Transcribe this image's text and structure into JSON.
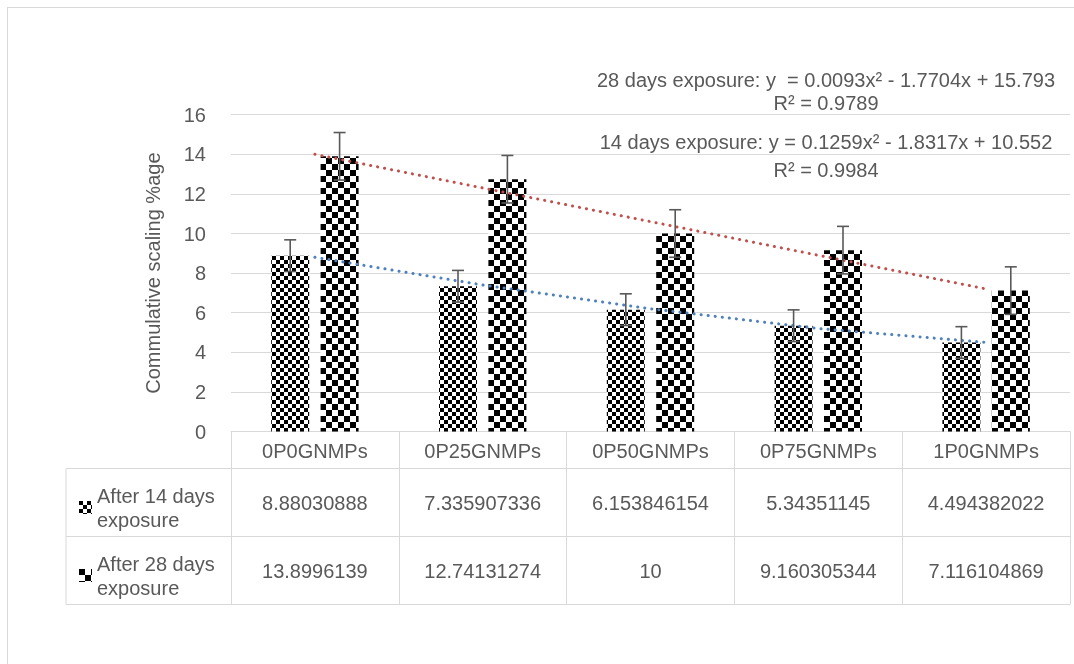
{
  "chart_data": {
    "type": "bar",
    "ylabel": "Commulative scaling %age",
    "annotations": [
      "28 days exposure: y  = 0.0093x² - 1.7704x + 15.793",
      "R² = 0.9789",
      "14 days exposure: y = 0.1259x² - 1.8317x + 10.552",
      "R² = 0.9984"
    ],
    "categories": [
      "0P0GNMPs",
      "0P25GNMPs",
      "0P50GNMPs",
      "0P75GNMPs",
      "1P0GNMPs"
    ],
    "series": [
      {
        "name": "After 14 days exposure",
        "color": "#000000",
        "values": [
          8.88030888,
          7.335907336,
          6.153846154,
          5.34351145,
          4.494382022
        ],
        "errors": [
          0.8,
          0.8,
          0.8,
          0.8,
          0.8
        ],
        "value_labels": [
          "8.88030888",
          "7.335907336",
          "6.153846154",
          "5.34351145",
          "4.494382022"
        ]
      },
      {
        "name": "After 28 days exposure",
        "color": "#000000",
        "values": [
          13.8996139,
          12.74131274,
          10,
          9.160305344,
          7.116104869
        ],
        "errors": [
          1.2,
          1.2,
          1.2,
          1.2,
          1.2
        ],
        "value_labels": [
          "13.8996139",
          "12.74131274",
          "10",
          "9.160305344",
          "7.116104869"
        ]
      },
      {
        "type": "line",
        "color": "#c0504d",
        "values": [
          14.0,
          12.3,
          10.6,
          8.9,
          7.2
        ]
      },
      {
        "type": "line",
        "color": "#4f81bd",
        "values": [
          8.8,
          7.4,
          6.2,
          5.2,
          4.5
        ]
      }
    ],
    "ylim": [
      0,
      16
    ],
    "yticks": [
      0,
      2,
      4,
      6,
      8,
      10,
      12,
      14,
      16
    ],
    "grid": "y",
    "legend": "bottom left",
    "line_style": "dotted"
  }
}
